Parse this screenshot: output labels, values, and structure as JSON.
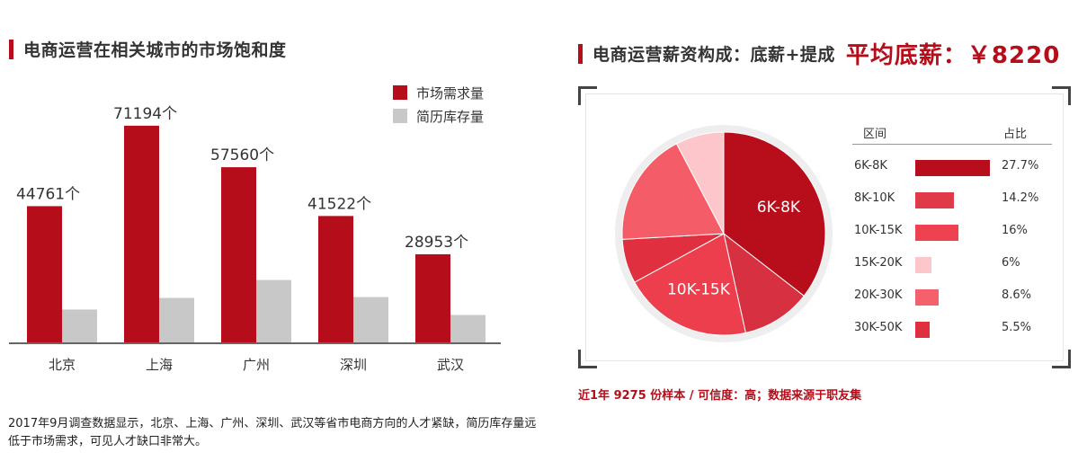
{
  "left": {
    "title": "电商运营在相关城市的市场饱和度",
    "caption": "2017年9月调查数据显示，北京、上海、广州、深圳、武汉等省市电商方向的人才紧缺，简历库存量远低于市场需求，可见人才缺口非常大。"
  },
  "right": {
    "title": "电商运营薪资构成：底薪+提成",
    "avg": "平均底薪：￥8220",
    "caption": "近1年 9275 份样本 / 可信度：高；数据来源于职友集",
    "table_header": {
      "range": "区间",
      "ratio": "占比"
    }
  },
  "colors": {
    "accent": "#b50d1a",
    "demand": "#b50d1a",
    "resume": "#c8c8c8"
  },
  "chart_data": [
    {
      "type": "bar",
      "categories": [
        "北京",
        "上海",
        "广州",
        "深圳",
        "武汉"
      ],
      "series": [
        {
          "name": "市场需求量",
          "values": [
            44761,
            71194,
            57560,
            41522,
            28953
          ],
          "labels": [
            "44761个",
            "71194个",
            "57560个",
            "41522个",
            "28953个"
          ]
        },
        {
          "name": "简历库存量",
          "values": [
            10800,
            14600,
            20500,
            14900,
            9000
          ]
        }
      ],
      "ylim": [
        0,
        75000
      ],
      "legend": "top-right",
      "grid": false
    },
    {
      "type": "pie",
      "slices": [
        {
          "label": "6K-8K",
          "value": 27.7,
          "pct": "27.7%",
          "color": "#b80d1a",
          "show_label": true
        },
        {
          "label": "20K-30K",
          "value": 8.6,
          "pct": "8.6%",
          "color": "#d73040",
          "show_label": false
        },
        {
          "label": "10K-15K",
          "value": 16,
          "pct": "16%",
          "color": "#ec3e4d",
          "show_label": true
        },
        {
          "label": "30K-50K",
          "value": 5.5,
          "pct": "5.5%",
          "color": "#e0303f",
          "show_label": false
        },
        {
          "label": "8K-10K",
          "value": 14.2,
          "pct": "14.2%",
          "color": "#f45c68",
          "show_label": false
        },
        {
          "label": "15K-20K",
          "value": 6,
          "pct": "6%",
          "color": "#fcc6cb",
          "show_label": false
        }
      ],
      "table_rows": [
        {
          "range": "6K-8K",
          "value": 27.7,
          "pct": "27.7%",
          "color": "#b80d1a"
        },
        {
          "range": "8K-10K",
          "value": 14.2,
          "pct": "14.2%",
          "color": "#e03a48"
        },
        {
          "range": "10K-15K",
          "value": 16,
          "pct": "16%",
          "color": "#ef4251"
        },
        {
          "range": "15K-20K",
          "value": 6,
          "pct": "6%",
          "color": "#fcc6cb"
        },
        {
          "range": "20K-30K",
          "value": 8.6,
          "pct": "8.6%",
          "color": "#f4606c"
        },
        {
          "range": "30K-50K",
          "value": 5.5,
          "pct": "5.5%",
          "color": "#e0303f"
        }
      ]
    }
  ]
}
